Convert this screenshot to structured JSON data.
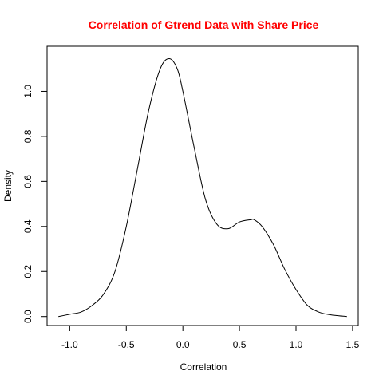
{
  "chart_data": {
    "type": "line",
    "title": "Correlation of Gtrend Data with Share Price",
    "title_color": "#ff0000",
    "xlabel": "Correlation",
    "ylabel": "Density",
    "xlim": [
      -1.2,
      1.55
    ],
    "ylim": [
      -0.04,
      1.2
    ],
    "x_ticks": [
      -1.0,
      -0.5,
      0.0,
      0.5,
      1.0,
      1.5
    ],
    "x_tick_labels": [
      "-1.0",
      "-0.5",
      "0.0",
      "0.5",
      "1.0",
      "1.5"
    ],
    "y_ticks": [
      0.0,
      0.2,
      0.4,
      0.6,
      0.8,
      1.0
    ],
    "y_tick_labels": [
      "0.0",
      "0.2",
      "0.4",
      "0.6",
      "0.8",
      "1.0"
    ],
    "grid": false,
    "line_color": "#000000",
    "series": [
      {
        "x": [
          -1.1,
          -1.0,
          -0.9,
          -0.8,
          -0.7,
          -0.6,
          -0.5,
          -0.4,
          -0.3,
          -0.2,
          -0.12,
          -0.05,
          0.0,
          0.1,
          0.2,
          0.3,
          0.4,
          0.5,
          0.6,
          0.63,
          0.7,
          0.8,
          0.9,
          1.0,
          1.1,
          1.2,
          1.3,
          1.45
        ],
        "y": [
          0.0,
          0.01,
          0.02,
          0.05,
          0.1,
          0.2,
          0.4,
          0.66,
          0.92,
          1.1,
          1.145,
          1.1,
          1.0,
          0.75,
          0.52,
          0.41,
          0.39,
          0.42,
          0.43,
          0.43,
          0.4,
          0.32,
          0.21,
          0.12,
          0.05,
          0.02,
          0.008,
          0.0
        ]
      }
    ]
  }
}
